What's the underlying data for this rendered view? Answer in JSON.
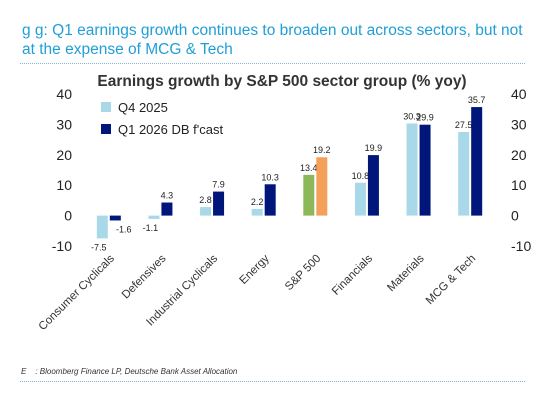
{
  "header": {
    "headline": "g        g: Q1 earnings growth continues to broaden out across sectors, but not at the expense of MCG & Tech"
  },
  "footer": {
    "source_lead": "E",
    "source_text": ": Bloomberg Finance LP, Deutsche Bank Asset Allocation"
  },
  "chart_data": {
    "type": "bar",
    "title": "Earnings growth by S&P 500 sector group (% yoy)",
    "categories": [
      "Consumer Cyclicals",
      "Defensives",
      "Industrial Cyclicals",
      "Energy",
      "S&P 500",
      "Financials",
      "Materials",
      "MCG & Tech"
    ],
    "series": [
      {
        "name": "Q4 2025",
        "color": "#a9d9e8",
        "values": [
          -7.5,
          -1.1,
          2.8,
          2.2,
          13.4,
          10.8,
          30.3,
          27.5
        ],
        "labels": [
          "-7.5",
          "-1.1",
          "2.8",
          "2.2",
          "13.4",
          "10.8",
          "30.3",
          "27.5"
        ]
      },
      {
        "name": "Q1 2026 DB f'cast",
        "color": "#00167a",
        "values": [
          -1.6,
          4.3,
          7.9,
          10.3,
          19.2,
          19.9,
          29.9,
          35.7
        ],
        "labels": [
          "-1.6",
          "4.3",
          "7.9",
          "10.3",
          "19.2",
          "19.9",
          "29.9",
          "35.7"
        ]
      }
    ],
    "highlight": {
      "category": "S&P 500",
      "colors": [
        "#8db85a",
        "#f5a05a"
      ]
    },
    "ylim": [
      -10,
      40
    ],
    "yticks": [
      "-10",
      "0",
      "10",
      "20",
      "30",
      "40"
    ],
    "secondary_axis": true,
    "grid": false,
    "legend_position": "top-left"
  }
}
